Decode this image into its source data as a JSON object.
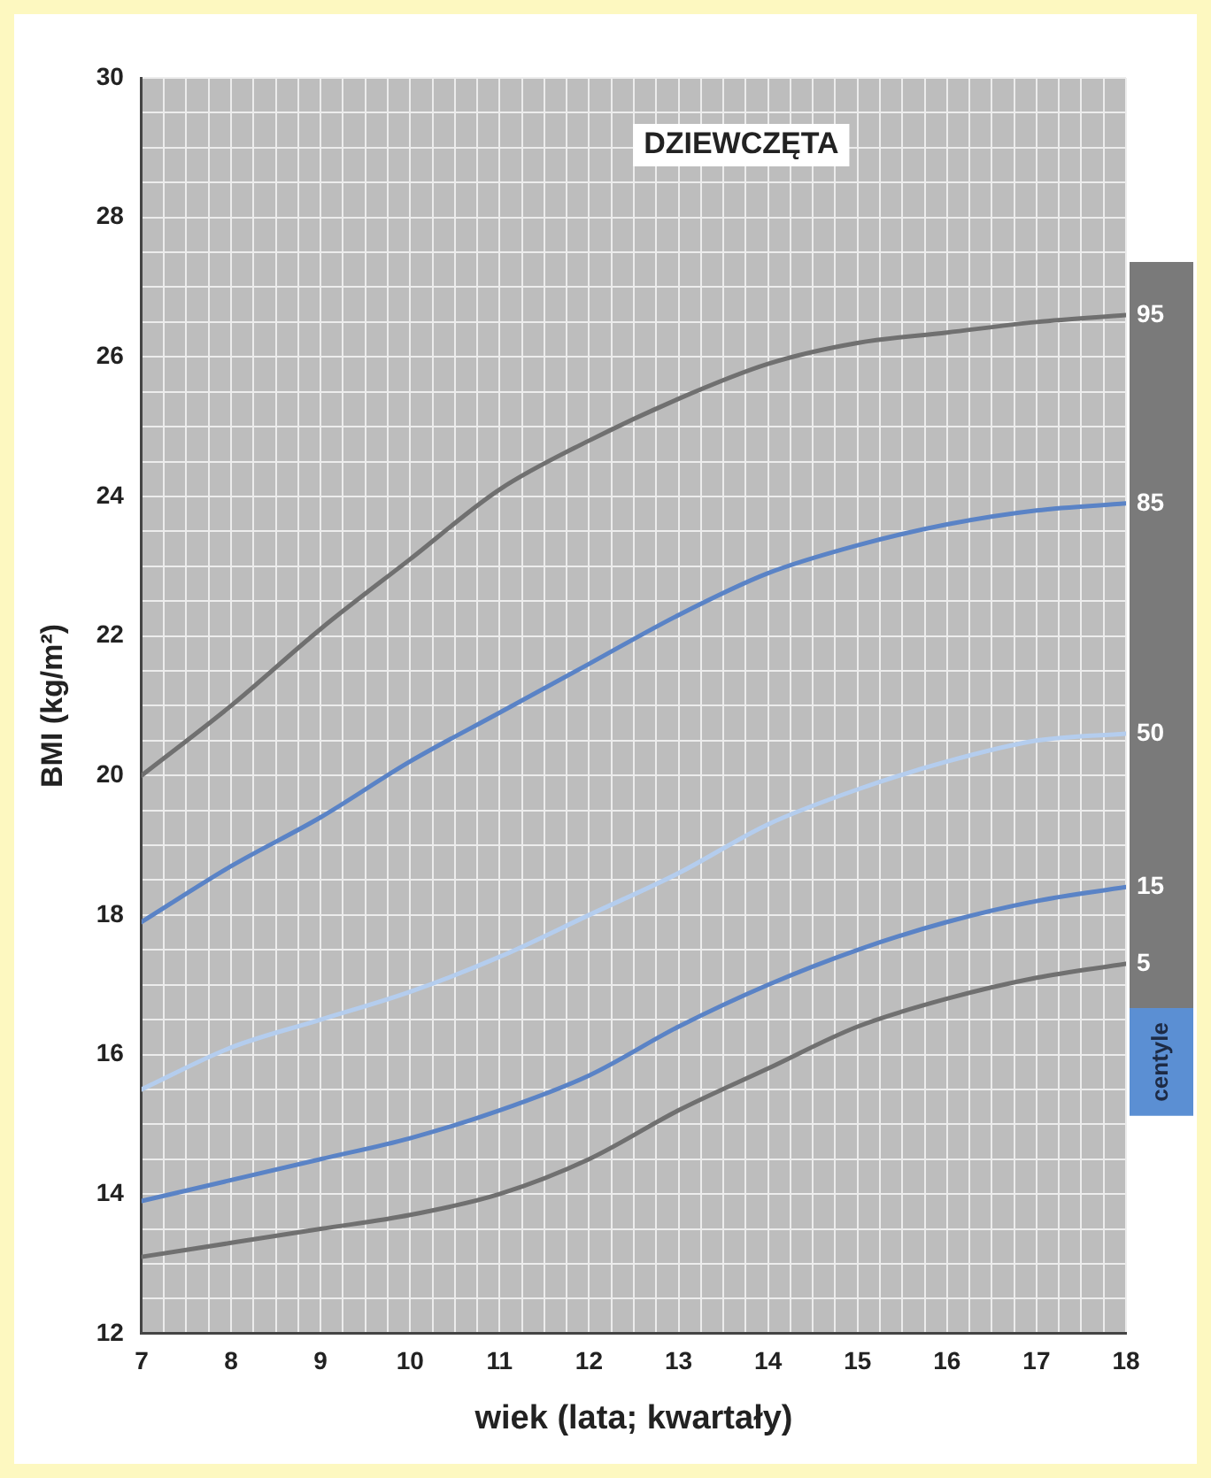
{
  "chart_data": {
    "type": "line",
    "title": "DZIEWCZĘTA",
    "xlabel": "wiek (lata; kwartały)",
    "ylabel": "BMI (kg/m²)",
    "legend_title": "centyle",
    "legend": false,
    "grid": true,
    "marker": "none",
    "line_style": "solid",
    "x": [
      7,
      8,
      9,
      10,
      11,
      12,
      13,
      14,
      15,
      16,
      17,
      18
    ],
    "series": [
      {
        "name": "95",
        "color": "#707070",
        "values": [
          20.0,
          21.0,
          22.1,
          23.1,
          24.1,
          24.8,
          25.4,
          25.9,
          26.2,
          26.35,
          26.5,
          26.6
        ]
      },
      {
        "name": "85",
        "color": "#5a83c6",
        "values": [
          17.9,
          18.7,
          19.4,
          20.2,
          20.9,
          21.6,
          22.3,
          22.9,
          23.3,
          23.6,
          23.8,
          23.9
        ]
      },
      {
        "name": "50",
        "color": "#b4cdee",
        "values": [
          15.5,
          16.1,
          16.5,
          16.9,
          17.4,
          18.0,
          18.6,
          19.3,
          19.8,
          20.2,
          20.5,
          20.6
        ]
      },
      {
        "name": "15",
        "color": "#5a83c6",
        "values": [
          13.9,
          14.2,
          14.5,
          14.8,
          15.2,
          15.7,
          16.4,
          17.0,
          17.5,
          17.9,
          18.2,
          18.4
        ]
      },
      {
        "name": "5",
        "color": "#707070",
        "values": [
          13.1,
          13.3,
          13.5,
          13.7,
          14.0,
          14.5,
          15.2,
          15.8,
          16.4,
          16.8,
          17.1,
          17.3
        ]
      }
    ],
    "xlim": [
      7,
      18
    ],
    "xticks": [
      7,
      {
        "value": 7.25,
        "label": null
      },
      {
        "value": 7.5,
        "label": null
      },
      {
        "value": 7.75,
        "label": null
      },
      8,
      {
        "value": 8.25,
        "label": null
      },
      {
        "value": 8.5,
        "label": null
      },
      {
        "value": 8.75,
        "label": null
      },
      9,
      {
        "value": 9.25,
        "label": null
      },
      {
        "value": 9.5,
        "label": null
      },
      {
        "value": 9.75,
        "label": null
      },
      10,
      {
        "value": 10.25,
        "label": null
      },
      {
        "value": 10.5,
        "label": null
      },
      {
        "value": 10.75,
        "label": null
      },
      11,
      {
        "value": 11.25,
        "label": null
      },
      {
        "value": 11.5,
        "label": null
      },
      {
        "value": 11.75,
        "label": null
      },
      12,
      {
        "value": 12.25,
        "label": null
      },
      {
        "value": 12.5,
        "label": null
      },
      {
        "value": 12.75,
        "label": null
      },
      13,
      {
        "value": 13.25,
        "label": null
      },
      {
        "value": 13.5,
        "label": null
      },
      {
        "value": 13.75,
        "label": null
      },
      14,
      {
        "value": 14.25,
        "label": null
      },
      {
        "value": 14.5,
        "label": null
      },
      {
        "value": 14.75,
        "label": null
      },
      15,
      {
        "value": 15.25,
        "label": null
      },
      {
        "value": 15.5,
        "label": null
      },
      {
        "value": 15.75,
        "label": null
      },
      16,
      {
        "value": 16.25,
        "label": null
      },
      {
        "value": 16.5,
        "label": null
      },
      {
        "value": 16.75,
        "label": null
      },
      17,
      {
        "value": 17.25,
        "label": null
      },
      {
        "value": 17.5,
        "label": null
      },
      {
        "value": 17.75,
        "label": null
      },
      18
    ],
    "ylim": [
      12,
      30
    ],
    "yticks": [
      12,
      {
        "value": 12.5,
        "label": null
      },
      {
        "value": 13,
        "label": null
      },
      {
        "value": 13.5,
        "label": null
      },
      14,
      {
        "value": 14.5,
        "label": null
      },
      {
        "value": 15,
        "label": null
      },
      {
        "value": 15.5,
        "label": null
      },
      16,
      {
        "value": 16.5,
        "label": null
      },
      {
        "value": 17,
        "label": null
      },
      {
        "value": 17.5,
        "label": null
      },
      18,
      {
        "value": 18.5,
        "label": null
      },
      {
        "value": 19,
        "label": null
      },
      {
        "value": 19.5,
        "label": null
      },
      20,
      {
        "value": 20.5,
        "label": null
      },
      {
        "value": 21,
        "label": null
      },
      {
        "value": 21.5,
        "label": null
      },
      22,
      {
        "value": 22.5,
        "label": null
      },
      {
        "value": 23,
        "label": null
      },
      {
        "value": 23.5,
        "label": null
      },
      24,
      {
        "value": 24.5,
        "label": null
      },
      {
        "value": 25,
        "label": null
      },
      {
        "value": 25.5,
        "label": null
      },
      26,
      {
        "value": 26.5,
        "label": null
      },
      {
        "value": 27,
        "label": null
      },
      {
        "value": 27.5,
        "label": null
      },
      28,
      {
        "value": 28.5,
        "label": null
      },
      {
        "value": 29,
        "label": null
      },
      {
        "value": 29.5,
        "label": null
      },
      30
    ]
  }
}
